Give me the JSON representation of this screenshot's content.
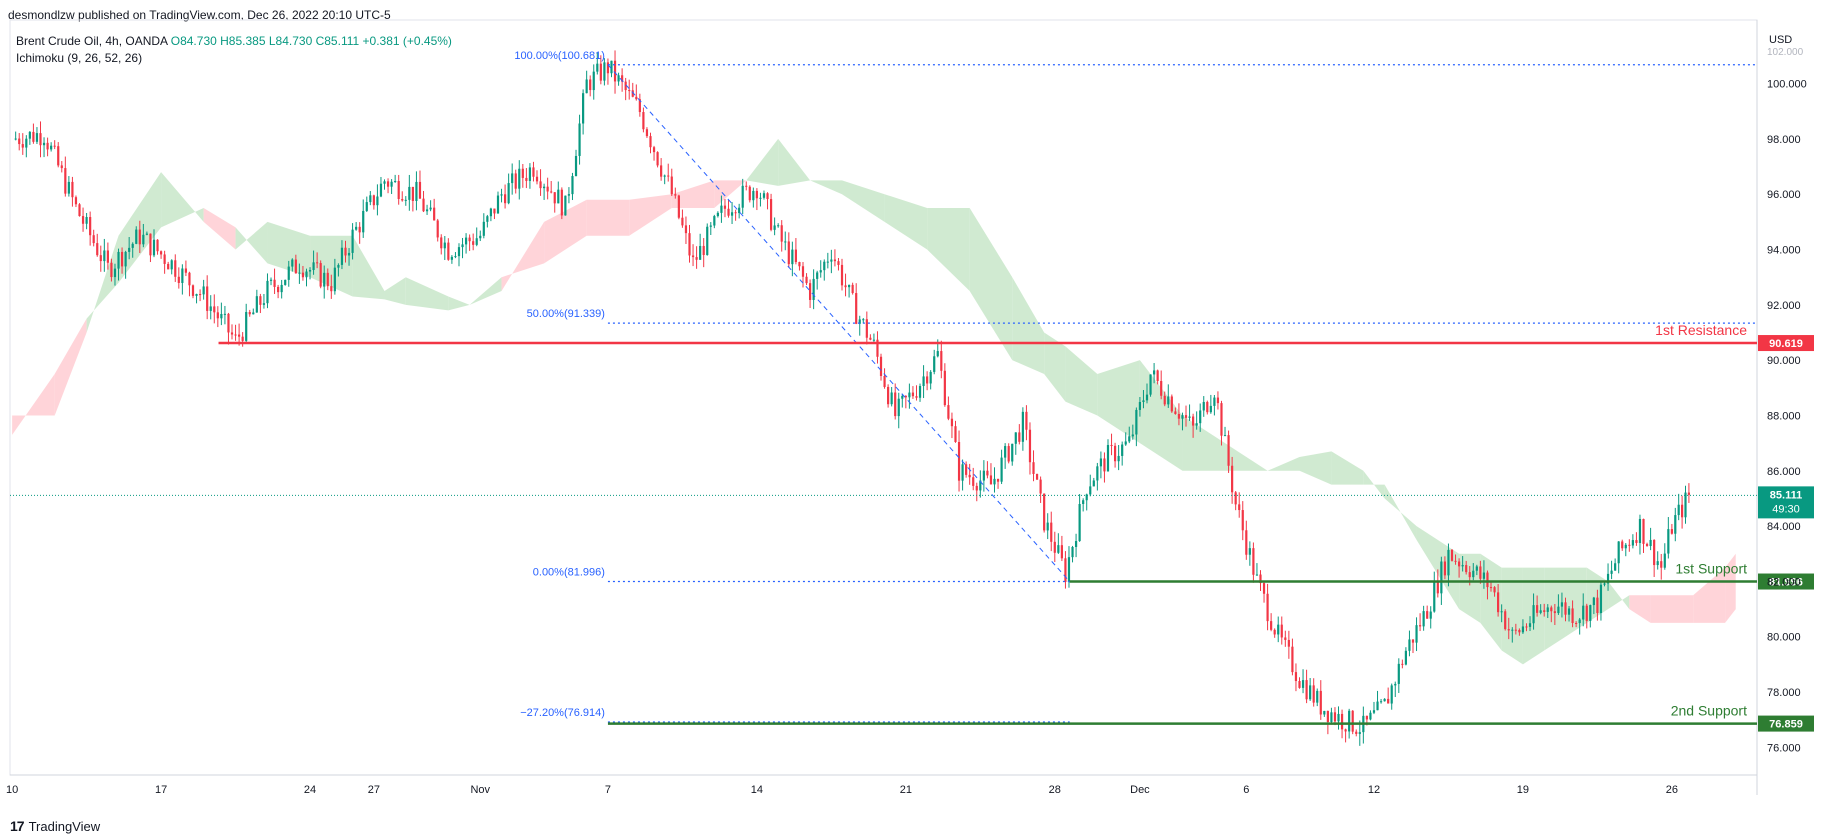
{
  "header": {
    "publisher": "desmondlzw published on TradingView.com, Dec 26, 2022 20:10 UTC-5",
    "symbol": "Brent Crude Oil, 4h, OANDA",
    "open": "O84.730",
    "high": "H85.385",
    "low": "L84.730",
    "close": "C85.111",
    "change": "+0.381 (+0.45%)",
    "indicator": "Ichimoku (9, 26, 52, 26)"
  },
  "footer": {
    "logo": "17",
    "brand": "TradingView"
  },
  "currency": "USD",
  "colors": {
    "up": "#089981",
    "down": "#f23645",
    "resistance": "#f23645",
    "support": "#2e7d32",
    "fib": "#2962ff",
    "cloud_bull": "#c8e6c9",
    "cloud_bear": "#ffcdd2"
  },
  "chart_data": {
    "type": "candlestick",
    "title": "",
    "ylim": [
      75,
      102.3
    ],
    "y_ticks": [
      "76.000",
      "78.000",
      "80.000",
      "82.000",
      "84.000",
      "86.000",
      "88.000",
      "90.000",
      "92.000",
      "94.000",
      "96.000",
      "98.000",
      "100.000"
    ],
    "y_tick_values": [
      76,
      78,
      80,
      82,
      84,
      86,
      88,
      90,
      92,
      94,
      96,
      98,
      100
    ],
    "x_labels": [
      {
        "label": "10",
        "x": 0
      },
      {
        "label": "17",
        "x": 7
      },
      {
        "label": "24",
        "x": 14
      },
      {
        "label": "27",
        "x": 17
      },
      {
        "label": "Nov",
        "x": 22
      },
      {
        "label": "7",
        "x": 28
      },
      {
        "label": "14",
        "x": 35
      },
      {
        "label": "21",
        "x": 42
      },
      {
        "label": "28",
        "x": 49
      },
      {
        "label": "Dec",
        "x": 53
      },
      {
        "label": "6",
        "x": 58
      },
      {
        "label": "12",
        "x": 64
      },
      {
        "label": "19",
        "x": 71
      },
      {
        "label": "26",
        "x": 78
      }
    ],
    "x_range": [
      -0.1,
      82
    ],
    "price_path": [
      [
        0,
        98
      ],
      [
        1.5,
        98.2
      ],
      [
        3,
        95.5
      ],
      [
        4.5,
        93.3
      ],
      [
        6,
        94.5
      ],
      [
        7.5,
        93.5
      ],
      [
        9,
        92.3
      ],
      [
        10.5,
        90.7
      ],
      [
        12,
        92.5
      ],
      [
        13.5,
        93.5
      ],
      [
        15,
        92.8
      ],
      [
        16,
        94.5
      ],
      [
        17.5,
        96.5
      ],
      [
        19,
        96
      ],
      [
        20.5,
        94
      ],
      [
        22,
        94.5
      ],
      [
        23,
        96
      ],
      [
        24.5,
        97
      ],
      [
        26,
        95.5
      ],
      [
        27,
        100
      ],
      [
        28,
        100.6
      ],
      [
        29.5,
        99
      ],
      [
        31,
        96
      ],
      [
        32,
        93.5
      ],
      [
        33.5,
        95.5
      ],
      [
        35,
        96.3
      ],
      [
        36,
        94.5
      ],
      [
        37.5,
        92.5
      ],
      [
        38.5,
        94
      ],
      [
        39.5,
        92
      ],
      [
        40.5,
        90.5
      ],
      [
        41.5,
        88
      ],
      [
        42.5,
        89
      ],
      [
        43.5,
        90.2
      ],
      [
        44.5,
        86
      ],
      [
        46,
        85.5
      ],
      [
        47.5,
        87.7
      ],
      [
        48.5,
        84.2
      ],
      [
        49.5,
        82.3
      ],
      [
        50.5,
        85.5
      ],
      [
        51.5,
        86.5
      ],
      [
        52.5,
        87
      ],
      [
        53.5,
        89.5
      ],
      [
        54.5,
        88.5
      ],
      [
        55.5,
        87.5
      ],
      [
        56.5,
        89
      ],
      [
        57.5,
        84.8
      ],
      [
        58.5,
        82
      ],
      [
        59.5,
        80
      ],
      [
        60.5,
        78.5
      ],
      [
        61.5,
        77.5
      ],
      [
        62.5,
        77
      ],
      [
        63.5,
        76.7
      ],
      [
        64.5,
        77.5
      ],
      [
        65.5,
        79.5
      ],
      [
        66.5,
        81
      ],
      [
        67.5,
        83
      ],
      [
        68.5,
        82.5
      ],
      [
        69.5,
        81.8
      ],
      [
        70.5,
        80
      ],
      [
        71.5,
        80.7
      ],
      [
        72.5,
        81.2
      ],
      [
        73.5,
        80.8
      ],
      [
        74.5,
        81.2
      ],
      [
        75.5,
        83
      ],
      [
        76.5,
        84
      ],
      [
        77.5,
        82.5
      ],
      [
        78,
        84
      ],
      [
        78.8,
        85.1
      ]
    ],
    "cloud": [
      [
        0,
        88,
        87.3
      ],
      [
        2,
        88,
        89.5
      ],
      [
        3.5,
        91,
        91.5
      ],
      [
        5,
        94.5,
        92.8
      ],
      [
        7,
        96.8,
        94.8
      ],
      [
        9,
        95,
        95.5
      ],
      [
        10.5,
        94,
        94.8
      ],
      [
        12,
        95,
        93.5
      ],
      [
        14,
        94.5,
        93
      ],
      [
        16,
        94.5,
        92.3
      ],
      [
        17.5,
        92.5,
        92.2
      ],
      [
        18.5,
        93,
        92
      ],
      [
        20.5,
        92.3,
        91.8
      ],
      [
        21.5,
        92,
        92
      ],
      [
        23,
        93,
        92.5
      ],
      [
        25,
        93.5,
        95
      ],
      [
        27,
        94.5,
        95.8
      ],
      [
        29,
        94.5,
        95.8
      ],
      [
        31,
        95.5,
        96
      ],
      [
        33,
        95.5,
        96.5
      ],
      [
        34.5,
        96.5,
        96.5
      ],
      [
        36,
        98,
        96.3
      ],
      [
        37.5,
        96.5,
        96.5
      ],
      [
        39,
        96.5,
        96
      ],
      [
        41,
        96,
        95
      ],
      [
        43,
        95.5,
        94
      ],
      [
        45,
        95.5,
        92.5
      ],
      [
        47,
        93,
        90
      ],
      [
        48.5,
        91,
        89.5
      ],
      [
        49.5,
        90.5,
        88.5
      ],
      [
        51,
        89.5,
        88
      ],
      [
        53,
        90,
        87
      ],
      [
        55,
        88,
        86
      ],
      [
        57,
        87,
        86
      ],
      [
        59,
        86,
        86
      ],
      [
        60.5,
        86.5,
        86
      ],
      [
        62,
        86.7,
        85.5
      ],
      [
        63.5,
        86,
        85.5
      ],
      [
        64.5,
        85,
        85.5
      ],
      [
        66,
        84,
        83.5
      ],
      [
        68,
        83,
        81
      ],
      [
        69,
        83,
        80.5
      ],
      [
        70,
        82.5,
        79.5
      ],
      [
        71,
        82.5,
        79
      ],
      [
        72,
        82.5,
        79.5
      ],
      [
        73,
        82.5,
        80
      ],
      [
        74,
        82.5,
        80.5
      ],
      [
        75,
        82,
        81
      ],
      [
        76,
        81,
        81.5
      ],
      [
        77,
        80.5,
        81.5
      ],
      [
        79,
        80.5,
        81.5
      ],
      [
        80.5,
        80.5,
        82.5
      ],
      [
        81,
        81,
        83
      ]
    ],
    "levels": [
      {
        "name": "1st Resistance",
        "value": 90.619,
        "label": "90.619",
        "start": 9.7,
        "end": 82,
        "style": "solid",
        "color": "#f23645"
      },
      {
        "name": "1st Support",
        "value": 81.996,
        "label": "81.996",
        "start": 49.7,
        "end": 82,
        "style": "solid",
        "color": "#2e7d32"
      },
      {
        "name": "2nd Support",
        "value": 76.859,
        "label": "76.859",
        "start": 28,
        "end": 82,
        "style": "solid",
        "color": "#2e7d32"
      }
    ],
    "fib_levels": [
      {
        "label": "100.00%(100.681)",
        "value": 100.681,
        "start": 28,
        "end": 82
      },
      {
        "label": "50.00%(91.339)",
        "value": 91.339,
        "start": 28,
        "end": 82
      },
      {
        "label": "0.00%(81.996)",
        "value": 81.996,
        "start": 28,
        "end": 49.7
      },
      {
        "label": "−27.20%(76.914)",
        "value": 76.914,
        "start": 28,
        "end": 49.7
      }
    ],
    "fib_trend": [
      [
        28,
        100.681
      ],
      [
        49.7,
        81.996
      ]
    ],
    "last_price": {
      "value": 85.111,
      "label": "85.111",
      "countdown": "49:30"
    },
    "top_axis_partial": "102.000"
  }
}
